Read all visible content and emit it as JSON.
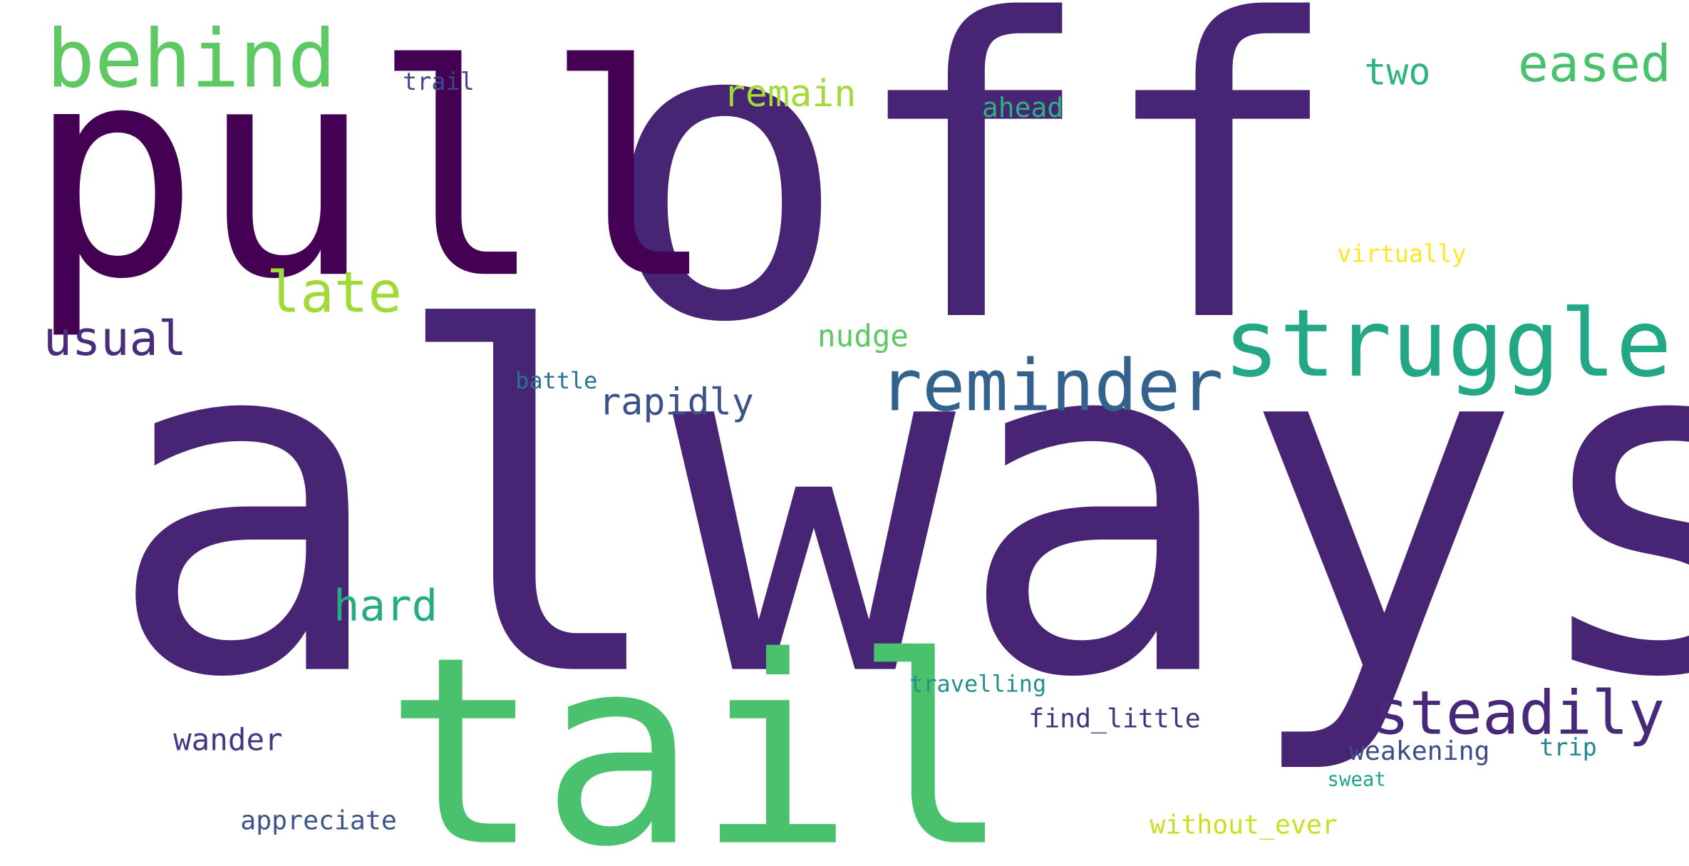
{
  "words": [
    {
      "text": "always",
      "color": "#482475"
    },
    {
      "text": "off",
      "color": "#482475"
    },
    {
      "text": "pull",
      "color": "#440154"
    },
    {
      "text": "tail",
      "color": "#4ac16d"
    },
    {
      "text": "struggle",
      "color": "#22a884"
    },
    {
      "text": "reminder",
      "color": "#33638d"
    },
    {
      "text": "behind",
      "color": "#5ec962"
    },
    {
      "text": "steadily",
      "color": "#482878"
    },
    {
      "text": "eased",
      "color": "#4ac16d"
    },
    {
      "text": "late",
      "color": "#a0da39"
    },
    {
      "text": "usual",
      "color": "#472d7b"
    },
    {
      "text": "hard",
      "color": "#25ac82"
    },
    {
      "text": "rapidly",
      "color": "#3b528b"
    },
    {
      "text": "remain",
      "color": "#a2da37"
    },
    {
      "text": "two",
      "color": "#2fb47c"
    },
    {
      "text": "wander",
      "color": "#453781"
    },
    {
      "text": "nudge",
      "color": "#5ec962"
    },
    {
      "text": "ahead",
      "color": "#2db27d"
    },
    {
      "text": "virtually",
      "color": "#fde725"
    },
    {
      "text": "trail",
      "color": "#3e4989"
    },
    {
      "text": "battle",
      "color": "#2c728e"
    },
    {
      "text": "appreciate",
      "color": "#3b528b"
    },
    {
      "text": "travelling",
      "color": "#21918c"
    },
    {
      "text": "find_little",
      "color": "#46337f"
    },
    {
      "text": "weakening",
      "color": "#3e4a89"
    },
    {
      "text": "trip",
      "color": "#25858e"
    },
    {
      "text": "sweat",
      "color": "#20a386"
    },
    {
      "text": "without_ever",
      "color": "#c8e020"
    }
  ]
}
